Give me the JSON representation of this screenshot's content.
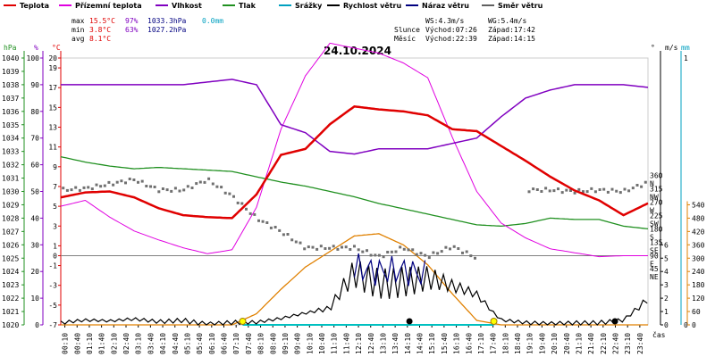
{
  "chart_data": {
    "type": "line",
    "title": "24.10.2024",
    "legend": [
      {
        "name": "Teplota",
        "color": "#e00000"
      },
      {
        "name": "Přízemní teplota",
        "color": "#e000e0"
      },
      {
        "name": "Vlhkost",
        "color": "#8000c0"
      },
      {
        "name": "Tlak",
        "color": "#209020"
      },
      {
        "name": "Srážky",
        "color": "#00a0c0"
      },
      {
        "name": "Rychlost větru",
        "color": "#000000"
      },
      {
        "name": "Náraz větru",
        "color": "#000080"
      },
      {
        "name": "Směr větru",
        "color": "#606060"
      }
    ],
    "stats": {
      "max_label": "max",
      "min_label": "min",
      "avg_label": "avg",
      "max_temp": "15.5°C",
      "max_hum": "97%",
      "max_press": "1033.3hPa",
      "max_rain": "0.0mm",
      "min_temp": "3.8°C",
      "min_hum": "63%",
      "min_press": "1027.2hPa",
      "avg_temp": "8.1°C",
      "ws": "WS:4.3m/s",
      "wg": "WG:5.4m/s",
      "sun_label": "Slunce",
      "sun_rise": "Východ:07:26",
      "sun_set": "Západ:17:42",
      "moon_label": "Měsíc",
      "moon_rise": "Východ:22:39",
      "moon_set": "Západ:14:15"
    },
    "axes": {
      "hpa_label": "hPa",
      "pct_label": "%",
      "c_label": "°C",
      "deg_label": "°",
      "ms_label": "m/s",
      "mm_label": "mm",
      "x_label": "čas",
      "hpa_ticks": [
        1020,
        1021,
        1022,
        1023,
        1024,
        1025,
        1026,
        1027,
        1028,
        1029,
        1030,
        1031,
        1032,
        1033,
        1034,
        1035,
        1036,
        1037,
        1038,
        1039,
        1040
      ],
      "pct_ticks": [
        0,
        10,
        20,
        30,
        40,
        50,
        60,
        70,
        80,
        90,
        100
      ],
      "c_ticks": [
        -7,
        -5,
        -3,
        -1,
        0,
        1,
        3,
        5,
        7,
        9,
        11,
        13,
        15,
        17,
        19,
        20
      ],
      "dir_ticks": [
        {
          "deg": 360,
          "label": "N"
        },
        {
          "deg": 315,
          "label": "NW"
        },
        {
          "deg": 270,
          "label": "W"
        },
        {
          "deg": 225,
          "label": "SW"
        },
        {
          "deg": 180,
          "label": "S"
        },
        {
          "deg": 135,
          "label": "SE"
        },
        {
          "deg": 90,
          "label": "E"
        },
        {
          "deg": 45,
          "label": "NE"
        }
      ],
      "ms_ticks": [
        0,
        1,
        2,
        3,
        4,
        5,
        6
      ],
      "mm_ticks": [
        0,
        1
      ],
      "sun_ticks": [
        0,
        60,
        120,
        180,
        240,
        300,
        360,
        420,
        480,
        540
      ],
      "x_ticks": [
        "00:10",
        "00:40",
        "01:10",
        "01:40",
        "02:10",
        "02:40",
        "03:10",
        "03:40",
        "04:10",
        "04:40",
        "05:10",
        "05:40",
        "06:10",
        "06:40",
        "07:10",
        "07:40",
        "08:10",
        "08:40",
        "09:10",
        "09:40",
        "10:10",
        "10:40",
        "11:10",
        "11:40",
        "12:10",
        "12:40",
        "13:10",
        "13:40",
        "14:10",
        "14:40",
        "15:10",
        "15:40",
        "16:10",
        "16:40",
        "17:10",
        "17:40",
        "18:10",
        "18:40",
        "19:10",
        "19:40",
        "20:10",
        "20:40",
        "21:10",
        "21:40",
        "22:10",
        "22:40",
        "23:10",
        "23:40"
      ]
    },
    "hours": [
      0,
      1,
      2,
      3,
      4,
      5,
      6,
      7,
      8,
      9,
      10,
      11,
      12,
      13,
      14,
      15,
      16,
      17,
      18,
      19,
      20,
      21,
      22,
      23,
      24
    ],
    "series": {
      "temperature": [
        5.9,
        6.4,
        6.5,
        5.9,
        4.8,
        4.1,
        3.9,
        3.8,
        6.2,
        10.2,
        10.8,
        13.3,
        15.1,
        14.8,
        14.6,
        14.2,
        12.8,
        12.6,
        11.1,
        9.6,
        8.0,
        6.6,
        5.6,
        4.1,
        5.3
      ],
      "ground_temp": [
        5.0,
        5.6,
        3.9,
        2.5,
        1.6,
        0.8,
        0.2,
        0.6,
        4.9,
        12.8,
        18.2,
        21.5,
        21.0,
        20.5,
        19.5,
        18.0,
        12.0,
        6.5,
        3.3,
        1.8,
        0.7,
        0.3,
        -0.1,
        0.0,
        0.0
      ],
      "humidity": [
        90,
        90,
        90,
        90,
        90,
        90,
        91,
        92,
        90,
        75,
        72,
        65,
        64,
        66,
        66,
        66,
        68,
        70,
        78,
        85,
        88,
        90,
        90,
        90,
        89
      ],
      "pressure": [
        1032.6,
        1032.2,
        1031.9,
        1031.7,
        1031.8,
        1031.7,
        1031.6,
        1031.5,
        1031.1,
        1030.7,
        1030.4,
        1030.0,
        1029.6,
        1029.1,
        1028.7,
        1028.3,
        1027.9,
        1027.5,
        1027.4,
        1027.6,
        1028.0,
        1027.9,
        1027.9,
        1027.4,
        1027.2
      ],
      "wind": [
        0.2,
        0.3,
        0.2,
        0.4,
        0.3,
        0.5,
        0.2,
        0.3,
        0.2,
        0.4,
        0.8,
        1.2,
        4.6,
        4.2,
        4.3,
        4.0,
        2.8,
        2.0,
        0.3,
        0.2,
        0.2,
        0.3,
        0.3,
        0.4,
        1.8
      ],
      "gust": [
        null,
        null,
        null,
        null,
        null,
        null,
        null,
        null,
        null,
        null,
        null,
        null,
        5.4,
        5.1,
        5.2,
        4.8,
        null,
        null,
        null,
        null,
        null,
        null,
        null,
        null,
        null
      ],
      "wind_dir": [
        320,
        325,
        340,
        355,
        320,
        320,
        355,
        300,
        225,
        180,
        125,
        125,
        125,
        95,
        125,
        95,
        130,
        90,
        null,
        320,
        320,
        315,
        320,
        315,
        345
      ],
      "sun_elevation": [
        0,
        0,
        0,
        0,
        0,
        0,
        0,
        0,
        50,
        160,
        260,
        330,
        400,
        410,
        360,
        270,
        140,
        20,
        0,
        0,
        0,
        0,
        0,
        0,
        0
      ]
    },
    "ylim_hpa": [
      1020,
      1040
    ],
    "xlim": [
      0,
      24
    ]
  }
}
